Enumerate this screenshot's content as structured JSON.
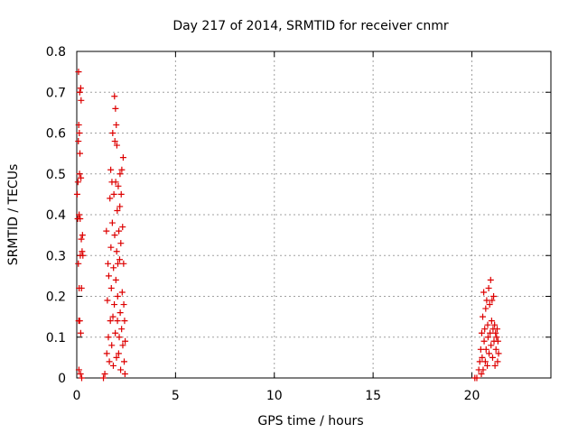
{
  "chart_data": {
    "type": "scatter",
    "title": "Day 217 of 2014, SRMTID for receiver cnmr",
    "xlabel": "GPS time / hours",
    "ylabel": "SRMTID / TECUs",
    "xlim": [
      0,
      24
    ],
    "ylim": [
      0,
      0.8
    ],
    "xticks": [
      0,
      5,
      10,
      15,
      20
    ],
    "yticks": [
      0,
      0.1,
      0.2,
      0.3,
      0.4,
      0.5,
      0.6,
      0.7,
      0.8
    ],
    "grid": true,
    "legend": "none",
    "marker": "plus",
    "color": "#dd0000",
    "series": [
      {
        "points": [
          [
            0.02,
            0.45
          ],
          [
            0.05,
            0.39
          ],
          [
            0.06,
            0.48
          ],
          [
            0.08,
            0.28
          ],
          [
            0.08,
            0.58
          ],
          [
            0.09,
            0.75
          ],
          [
            0.1,
            0.62
          ],
          [
            0.1,
            0.14
          ],
          [
            0.11,
            0.02
          ],
          [
            0.12,
            0.4
          ],
          [
            0.12,
            0.22
          ],
          [
            0.13,
            0.6
          ],
          [
            0.14,
            0.5
          ],
          [
            0.15,
            0.7
          ],
          [
            0.15,
            0.14
          ],
          [
            0.16,
            0.55
          ],
          [
            0.17,
            0.39
          ],
          [
            0.18,
            0.3
          ],
          [
            0.19,
            0.01
          ],
          [
            0.2,
            0.71
          ],
          [
            0.2,
            0.11
          ],
          [
            0.21,
            0.49
          ],
          [
            0.22,
            0.68
          ],
          [
            0.23,
            0.34
          ],
          [
            0.24,
            0.22
          ],
          [
            0.25,
            0.0
          ],
          [
            0.27,
            0.31
          ],
          [
            0.29,
            0.35
          ],
          [
            0.31,
            0.3
          ],
          [
            1.35,
            0.0
          ],
          [
            1.42,
            0.01
          ],
          [
            1.5,
            0.36
          ],
          [
            1.52,
            0.06
          ],
          [
            1.55,
            0.19
          ],
          [
            1.58,
            0.28
          ],
          [
            1.6,
            0.1
          ],
          [
            1.62,
            0.25
          ],
          [
            1.65,
            0.04
          ],
          [
            1.68,
            0.44
          ],
          [
            1.7,
            0.14
          ],
          [
            1.72,
            0.51
          ],
          [
            1.73,
            0.32
          ],
          [
            1.75,
            0.22
          ],
          [
            1.77,
            0.08
          ],
          [
            1.78,
            0.48
          ],
          [
            1.8,
            0.38
          ],
          [
            1.82,
            0.6
          ],
          [
            1.83,
            0.15
          ],
          [
            1.85,
            0.03
          ],
          [
            1.86,
            0.27
          ],
          [
            1.88,
            0.45
          ],
          [
            1.9,
            0.18
          ],
          [
            1.91,
            0.69
          ],
          [
            1.92,
            0.35
          ],
          [
            1.93,
            0.58
          ],
          [
            1.95,
            0.11
          ],
          [
            1.96,
            0.66
          ],
          [
            1.97,
            0.48
          ],
          [
            1.98,
            0.24
          ],
          [
            2.0,
            0.62
          ],
          [
            2.01,
            0.05
          ],
          [
            2.02,
            0.31
          ],
          [
            2.03,
            0.57
          ],
          [
            2.05,
            0.41
          ],
          [
            2.06,
            0.14
          ],
          [
            2.07,
            0.2
          ],
          [
            2.08,
            0.28
          ],
          [
            2.1,
            0.47
          ],
          [
            2.12,
            0.06
          ],
          [
            2.13,
            0.36
          ],
          [
            2.15,
            0.1
          ],
          [
            2.17,
            0.29
          ],
          [
            2.18,
            0.42
          ],
          [
            2.19,
            0.5
          ],
          [
            2.2,
            0.16
          ],
          [
            2.22,
            0.02
          ],
          [
            2.23,
            0.33
          ],
          [
            2.25,
            0.45
          ],
          [
            2.27,
            0.12
          ],
          [
            2.28,
            0.51
          ],
          [
            2.3,
            0.21
          ],
          [
            2.32,
            0.37
          ],
          [
            2.33,
            0.08
          ],
          [
            2.35,
            0.54
          ],
          [
            2.37,
            0.28
          ],
          [
            2.38,
            0.18
          ],
          [
            2.4,
            0.04
          ],
          [
            2.42,
            0.14
          ],
          [
            2.44,
            0.01
          ],
          [
            2.45,
            0.09
          ],
          [
            20.15,
            0.0
          ],
          [
            20.25,
            0.0
          ],
          [
            20.35,
            0.02
          ],
          [
            20.4,
            0.04
          ],
          [
            20.45,
            0.07
          ],
          [
            20.48,
            0.01
          ],
          [
            20.5,
            0.11
          ],
          [
            20.52,
            0.05
          ],
          [
            20.55,
            0.15
          ],
          [
            20.57,
            0.02
          ],
          [
            20.6,
            0.21
          ],
          [
            20.62,
            0.09
          ],
          [
            20.65,
            0.12
          ],
          [
            20.68,
            0.04
          ],
          [
            20.7,
            0.17
          ],
          [
            20.72,
            0.07
          ],
          [
            20.75,
            0.19
          ],
          [
            20.78,
            0.03
          ],
          [
            20.8,
            0.13
          ],
          [
            20.82,
            0.1
          ],
          [
            20.85,
            0.22
          ],
          [
            20.87,
            0.06
          ],
          [
            20.9,
            0.18
          ],
          [
            20.92,
            0.11
          ],
          [
            20.95,
            0.24
          ],
          [
            20.97,
            0.08
          ],
          [
            21.0,
            0.14
          ],
          [
            21.02,
            0.19
          ],
          [
            21.05,
            0.05
          ],
          [
            21.07,
            0.12
          ],
          [
            21.1,
            0.2
          ],
          [
            21.12,
            0.09
          ],
          [
            21.15,
            0.13
          ],
          [
            21.17,
            0.03
          ],
          [
            21.2,
            0.11
          ],
          [
            21.22,
            0.07
          ],
          [
            21.25,
            0.1
          ],
          [
            21.28,
            0.12
          ],
          [
            21.3,
            0.04
          ],
          [
            21.32,
            0.09
          ],
          [
            21.35,
            0.06
          ]
        ]
      }
    ]
  }
}
